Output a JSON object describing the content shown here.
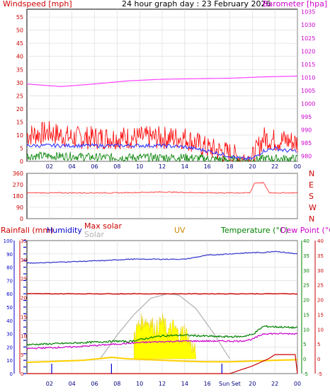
{
  "header": {
    "title": "24 hour graph day : 23 February 2026",
    "left_label": "Windspeed [mph]",
    "right_label": "Barometer [hpa]"
  },
  "colors": {
    "wind": "#ff0000",
    "avg_wind": "#3333ff",
    "gust_low": "#008000",
    "barometer": "#ff40ff",
    "direction": "#ff3333",
    "humidity": "#3333cc",
    "max_solar": "#cc0000",
    "solar_curve": "#b0b0b0",
    "uv": "#cc8800",
    "temperature": "#008000",
    "dew_point": "#cc00cc",
    "rain": "#cc0000",
    "solar_fill": "#ffff00",
    "axis_blue": "#0000cc",
    "axis_red": "#cc0000",
    "axis_green": "#008000"
  },
  "chart_data": [
    {
      "type": "line",
      "name": "wind-barometer",
      "xlabel": "",
      "x_ticks": [
        "02",
        "04",
        "06",
        "08",
        "10",
        "12",
        "14",
        "16",
        "18",
        "20",
        "22",
        "00"
      ],
      "left_axis": {
        "label": "Windspeed [mph]",
        "ticks": [
          "0",
          "5",
          "10",
          "15",
          "20",
          "25",
          "30",
          "35",
          "40",
          "45",
          "50",
          "55"
        ],
        "ylim": [
          0,
          58
        ]
      },
      "right_axis": {
        "label": "Barometer [hpa]",
        "ticks": [
          "980",
          "985",
          "990",
          "995",
          "1000",
          "1005",
          "1010",
          "1015",
          "1020",
          "1025",
          "1030",
          "1035"
        ],
        "ylim": [
          978,
          1036
        ]
      },
      "grid": true,
      "series": [
        {
          "role": "barometer",
          "x_hours": [
            0,
            3,
            6,
            9,
            12,
            15,
            18,
            21,
            24
          ],
          "values": [
            1007.5,
            1006.5,
            1007.5,
            1008.7,
            1009.3,
            1009.5,
            1009.7,
            1010.2,
            1010.5
          ]
        },
        {
          "role": "gust",
          "x_hours": [
            0,
            2,
            4,
            6,
            8,
            10,
            12,
            14,
            16,
            17,
            18,
            19,
            20,
            21,
            22,
            23,
            24
          ],
          "values": [
            10,
            11,
            9,
            9,
            9,
            9,
            9,
            9,
            5,
            4,
            3,
            1,
            1,
            9,
            8,
            8,
            7
          ]
        },
        {
          "role": "average",
          "x_hours": [
            0,
            2,
            4,
            6,
            8,
            10,
            12,
            14,
            16,
            17,
            18,
            19,
            20,
            21,
            22,
            23,
            24
          ],
          "values": [
            6,
            6,
            6,
            6,
            6,
            6,
            6,
            5.5,
            4,
            3,
            2,
            1,
            1,
            4,
            5,
            4,
            4
          ]
        },
        {
          "role": "lull",
          "x_hours": [
            0,
            2,
            4,
            6,
            8,
            10,
            12,
            14,
            16,
            18,
            20,
            21,
            22,
            24
          ],
          "values": [
            2,
            2,
            2,
            1.5,
            1.5,
            1.5,
            1.5,
            1.5,
            1,
            0.5,
            0.3,
            1,
            1,
            1
          ]
        }
      ]
    },
    {
      "type": "line",
      "name": "wind-direction",
      "x_ticks": [
        "02",
        "04",
        "06",
        "08",
        "10",
        "12",
        "14",
        "16",
        "18",
        "20",
        "22",
        "00"
      ],
      "left_axis": {
        "ticks": [
          "0",
          "90",
          "180",
          "270",
          "360"
        ],
        "ylim": [
          0,
          360
        ]
      },
      "right_axis": {
        "ticks": [
          "N",
          "W",
          "S",
          "E",
          "N"
        ]
      },
      "grid": true,
      "series": [
        {
          "role": "direction",
          "x_hours": [
            0,
            4,
            8,
            12,
            16,
            19.8,
            20.2,
            21,
            21.5,
            24
          ],
          "values": [
            205,
            205,
            205,
            212,
            205,
            205,
            285,
            285,
            205,
            205
          ]
        }
      ]
    },
    {
      "type": "line",
      "name": "temperature-humidity-solar",
      "legend": [
        "Rainfall (mm)",
        "Humidity",
        "Max solar",
        "Solar",
        "UV",
        "Temperature (°C)",
        "Dew Point (°C)"
      ],
      "x_ticks": [
        "02",
        "04",
        "06",
        "08",
        "10",
        "12",
        "14",
        "16",
        "Sun Set",
        "20",
        "22",
        "00"
      ],
      "humidity_axis": {
        "ticks": [
          "0",
          "10",
          "20",
          "30",
          "40",
          "50",
          "60",
          "70",
          "80",
          "90",
          "100"
        ],
        "ylim": [
          0,
          100
        ]
      },
      "rain_axis": {
        "ticks": [
          "0",
          "5",
          "10",
          "15",
          "20",
          "25",
          "30",
          "35"
        ],
        "ylim": [
          0,
          35
        ]
      },
      "uv_axis": {
        "ticks": [
          "0",
          "5",
          "10",
          "15",
          "20",
          "25",
          "30",
          "35",
          "40",
          "45",
          "50",
          "55",
          "60",
          "65",
          "70",
          "75",
          "80",
          "85",
          "90",
          "95",
          "100"
        ],
        "ylim": [
          0,
          100
        ]
      },
      "temp_axis": {
        "ticks": [
          "-5",
          "0",
          "5",
          "10",
          "15",
          "20",
          "25",
          "30",
          "35",
          "40"
        ],
        "ylim": [
          -5,
          40
        ]
      },
      "dew_axis": {
        "ticks": [
          "-5",
          "0",
          "5",
          "10",
          "15",
          "20",
          "25",
          "30",
          "35",
          "40"
        ],
        "ylim": [
          -5,
          40
        ]
      },
      "grid": true,
      "series": [
        {
          "role": "humidity",
          "x_hours": [
            0,
            7,
            9,
            14,
            16,
            20,
            21,
            22,
            24
          ],
          "values": [
            83,
            85,
            86,
            86,
            89,
            91,
            91,
            92,
            90
          ]
        },
        {
          "role": "max_solar",
          "x_hours": [
            0,
            24
          ],
          "values": [
            22,
            22
          ]
        },
        {
          "role": "solar_baseline",
          "x_hours": [
            0,
            5,
            7.5,
            9,
            14,
            16,
            18,
            22,
            24
          ],
          "values": [
            -1.2,
            -0.5,
            0.5,
            0,
            -0.8,
            -1,
            -1,
            -0.5,
            -0.3
          ]
        },
        {
          "role": "solar_curve",
          "x_hours": [
            6.5,
            8,
            9.5,
            11,
            12.5,
            13.5,
            15,
            16.5,
            18
          ],
          "values": [
            0,
            8,
            15,
            20.5,
            22,
            21.5,
            17,
            9,
            0
          ]
        },
        {
          "role": "temperature",
          "x_hours": [
            0,
            4,
            8,
            9,
            10,
            12,
            14,
            17,
            19,
            20,
            21,
            24
          ],
          "values": [
            4.8,
            5.3,
            6,
            5.8,
            6.5,
            7.8,
            8,
            7.5,
            7.5,
            8.2,
            11,
            10.5
          ]
        },
        {
          "role": "dew_point",
          "x_hours": [
            0,
            4,
            8,
            10,
            12,
            14,
            17,
            19,
            20,
            21,
            24
          ],
          "values": [
            3.5,
            4,
            5,
            5.5,
            5.8,
            6,
            6,
            6,
            6.6,
            8.5,
            8.5
          ]
        },
        {
          "role": "solar_fill",
          "x_hours": [
            9.5,
            10,
            10.5,
            11,
            11.5,
            12,
            12.5,
            13,
            13.5,
            14,
            14.5,
            15
          ],
          "values": [
            8,
            12,
            13,
            12,
            10,
            13,
            9,
            11,
            8,
            10,
            5,
            2
          ]
        },
        {
          "role": "rainfall",
          "x_hours": [
            0,
            18,
            19,
            20,
            21.5,
            22,
            23.8,
            24
          ],
          "values": [
            0,
            0,
            1,
            2,
            4,
            5,
            5,
            0
          ]
        }
      ]
    }
  ]
}
